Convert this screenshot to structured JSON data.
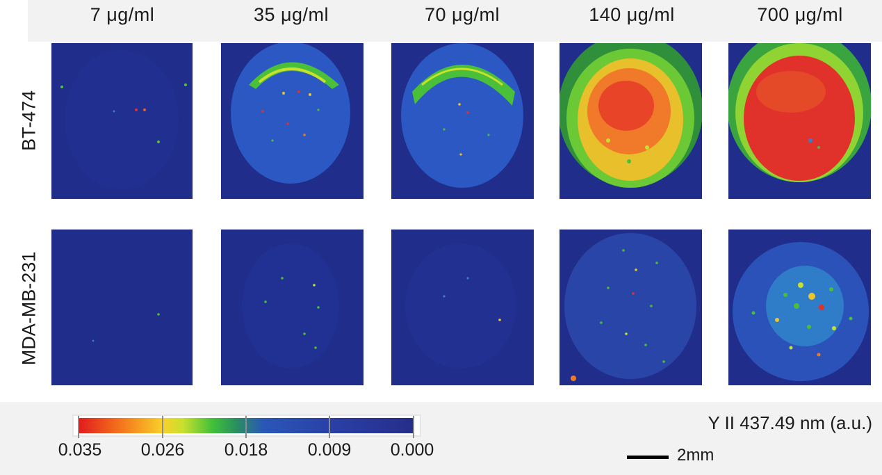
{
  "columns": [
    "7 μg/ml",
    "35 μg/ml",
    "70 μg/ml",
    "140 μg/ml",
    "700 μg/ml"
  ],
  "rows": [
    "BT-474",
    "MDA-MB-231"
  ],
  "colorbar": {
    "ticks": [
      "0.035",
      "0.026",
      "0.018",
      "0.009",
      "0.000"
    ],
    "colors": [
      "#e11d1d",
      "#f8d12a",
      "#3fbf39",
      "#2a57b8",
      "#262d8a"
    ]
  },
  "legend_title": "Y II 437.49 nm (a.u.)",
  "scale_bar": "2mm"
}
